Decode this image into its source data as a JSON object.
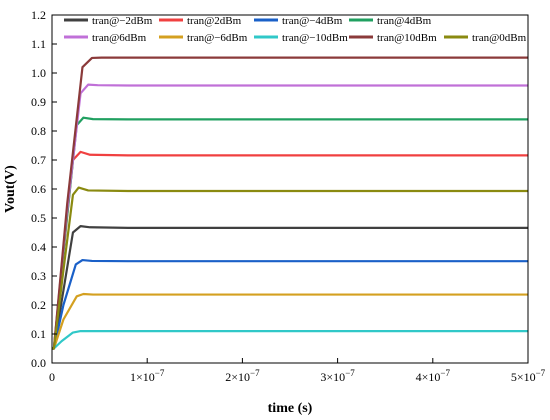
{
  "chart_data": {
    "type": "line",
    "xlabel": "time (s)",
    "ylabel": "Vout(V)",
    "xlim": [
      0,
      5e-07
    ],
    "ylim": [
      0,
      1.2
    ],
    "x_ticks": [
      {
        "value": 0,
        "label": "0"
      },
      {
        "value": 1e-07,
        "label": "1×10",
        "exp": "−7"
      },
      {
        "value": 2e-07,
        "label": "2×10",
        "exp": "−7"
      },
      {
        "value": 3e-07,
        "label": "3×10",
        "exp": "−7"
      },
      {
        "value": 4e-07,
        "label": "4×10",
        "exp": "−7"
      },
      {
        "value": 5e-07,
        "label": "5×10",
        "exp": "−7"
      }
    ],
    "y_ticks": [
      {
        "value": 0.0,
        "label": "0.0"
      },
      {
        "value": 0.1,
        "label": "0.1"
      },
      {
        "value": 0.2,
        "label": "0.2"
      },
      {
        "value": 0.3,
        "label": "0.3"
      },
      {
        "value": 0.4,
        "label": "0.4"
      },
      {
        "value": 0.5,
        "label": "0.5"
      },
      {
        "value": 0.6,
        "label": "0.6"
      },
      {
        "value": 0.7,
        "label": "0.7"
      },
      {
        "value": 0.8,
        "label": "0.8"
      },
      {
        "value": 0.9,
        "label": "0.9"
      },
      {
        "value": 1.0,
        "label": "1.0"
      },
      {
        "value": 1.1,
        "label": "1.1"
      },
      {
        "value": 1.2,
        "label": "1.2"
      }
    ],
    "grid": false,
    "legend_position": "top",
    "series": [
      {
        "name": "tran@−2dBm",
        "color": "#404040",
        "x": [
          0,
          2e-09,
          1.2e-08,
          2.2e-08,
          3e-08,
          4e-08,
          8e-08,
          5e-07
        ],
        "y": [
          0.05,
          0.05,
          0.25,
          0.45,
          0.472,
          0.468,
          0.466,
          0.466
        ]
      },
      {
        "name": "tran@2dBm",
        "color": "#f04040",
        "x": [
          0,
          2e-09,
          1.2e-08,
          2.2e-08,
          3e-08,
          4e-08,
          8e-08,
          5e-07
        ],
        "y": [
          0.05,
          0.05,
          0.38,
          0.7,
          0.728,
          0.718,
          0.716,
          0.716
        ]
      },
      {
        "name": "tran@−4dBm",
        "color": "#1a60c8",
        "x": [
          0,
          2e-09,
          1.2e-08,
          2.5e-08,
          3.2e-08,
          4.2e-08,
          8e-08,
          5e-07
        ],
        "y": [
          0.05,
          0.05,
          0.2,
          0.34,
          0.355,
          0.352,
          0.351,
          0.351
        ]
      },
      {
        "name": "tran@4dBm",
        "color": "#20a060",
        "x": [
          0,
          2e-09,
          1.4e-08,
          2.6e-08,
          3.3e-08,
          4.3e-08,
          8e-08,
          5e-07
        ],
        "y": [
          0.05,
          0.05,
          0.45,
          0.82,
          0.846,
          0.841,
          0.84,
          0.84
        ]
      },
      {
        "name": "tran@6dBm",
        "color": "#c070d8",
        "x": [
          0,
          2e-09,
          1.5e-08,
          3e-08,
          3.8e-08,
          4.8e-08,
          8e-08,
          5e-07
        ],
        "y": [
          0.05,
          0.05,
          0.5,
          0.93,
          0.96,
          0.958,
          0.957,
          0.957
        ]
      },
      {
        "name": "tran@−6dBm",
        "color": "#d4a020",
        "x": [
          0,
          2e-09,
          1.2e-08,
          2.6e-08,
          3.3e-08,
          4.3e-08,
          8e-08,
          5e-07
        ],
        "y": [
          0.05,
          0.05,
          0.15,
          0.23,
          0.238,
          0.236,
          0.236,
          0.236
        ]
      },
      {
        "name": "tran@−10dBm",
        "color": "#30c8c8",
        "x": [
          0,
          2e-09,
          1e-08,
          2.2e-08,
          3e-08,
          4e-08,
          8e-08,
          5e-07
        ],
        "y": [
          0.05,
          0.05,
          0.075,
          0.105,
          0.11,
          0.11,
          0.11,
          0.11
        ]
      },
      {
        "name": "tran@10dBm",
        "color": "#8b3a3a",
        "x": [
          0,
          2e-09,
          1.6e-08,
          3.2e-08,
          4.2e-08,
          5.2e-08,
          8e-08,
          5e-07
        ],
        "y": [
          0.05,
          0.05,
          0.55,
          1.02,
          1.052,
          1.053,
          1.053,
          1.053
        ]
      },
      {
        "name": "tran@0dBm",
        "color": "#8a8a10",
        "x": [
          0,
          2e-09,
          1.2e-08,
          2.2e-08,
          2.8e-08,
          3.8e-08,
          8e-08,
          5e-07
        ],
        "y": [
          0.05,
          0.05,
          0.32,
          0.58,
          0.605,
          0.595,
          0.593,
          0.593
        ]
      }
    ]
  }
}
